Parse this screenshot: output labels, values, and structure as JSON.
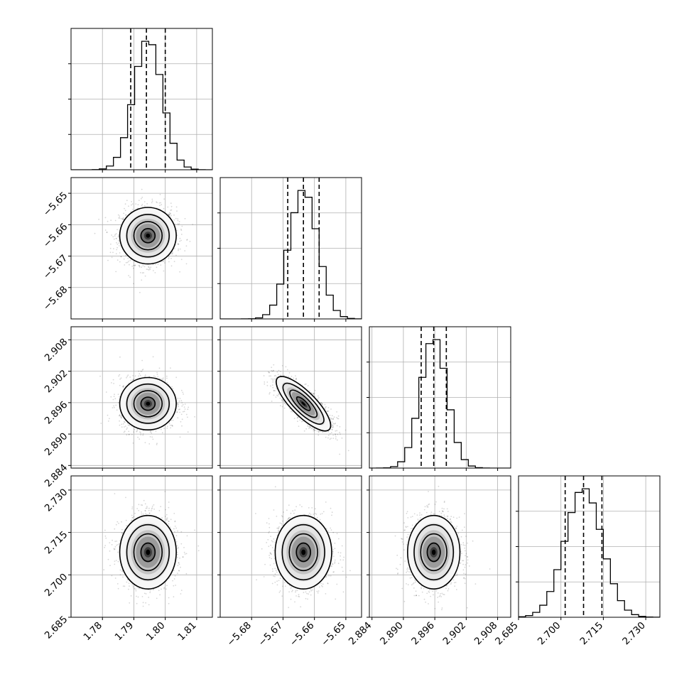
{
  "chart_data": {
    "type": "corner",
    "parameters": [
      {
        "mean": 1.7945,
        "sd": 0.0045,
        "range": [
          1.77,
          1.815
        ],
        "ticks": [
          1.78,
          1.79,
          1.8,
          1.81
        ],
        "tick_labels": [
          "1.78",
          "1.79",
          "1.80",
          "1.81"
        ],
        "quantiles": [
          1.789,
          1.794,
          1.8
        ]
      },
      {
        "mean": -5.6635,
        "sd": 0.0045,
        "range": [
          -5.69,
          -5.645
        ],
        "ticks": [
          -5.68,
          -5.67,
          -5.66,
          -5.65
        ],
        "tick_labels": [
          "−5.68",
          "−5.67",
          "−5.66",
          "−5.65"
        ],
        "quantiles": [
          -5.6685,
          -5.6635,
          -5.6585
        ]
      },
      {
        "mean": 2.8958,
        "sd": 0.0025,
        "range": [
          2.8835,
          2.9105
        ],
        "ticks": [
          2.884,
          2.89,
          2.896,
          2.902,
          2.908
        ],
        "tick_labels": [
          "2.884",
          "2.890",
          "2.896",
          "2.902",
          "2.908"
        ],
        "quantiles": [
          2.8934,
          2.8958,
          2.8982
        ]
      },
      {
        "mean": 2.708,
        "sd": 0.0065,
        "range": [
          2.685,
          2.735
        ],
        "ticks": [
          2.685,
          2.7,
          2.715,
          2.73
        ],
        "tick_labels": [
          "2.685",
          "2.700",
          "2.715",
          "2.730"
        ],
        "quantiles": [
          2.7015,
          2.708,
          2.7145
        ]
      }
    ],
    "hist_bins": 20,
    "correlations": {
      "1-0": 0.0,
      "2-0": 0.0,
      "2-1": -0.8,
      "3-0": 0.0,
      "3-1": 0.0,
      "3-2": 0.0
    },
    "grid": true
  }
}
